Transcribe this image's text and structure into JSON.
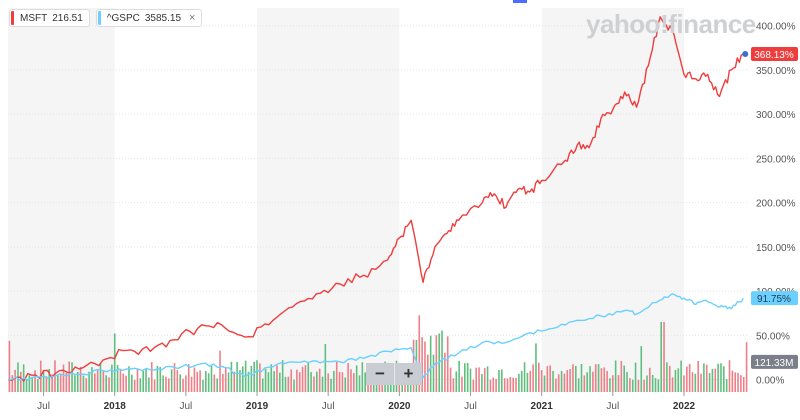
{
  "legend": {
    "items": [
      {
        "symbol": "MSFT",
        "value": "216.51",
        "color": "#ef3d3d"
      },
      {
        "symbol": "^GSPC",
        "value": "3585.15",
        "color": "#6cd0ff",
        "close": "×"
      }
    ]
  },
  "watermark": "yahoo!finance",
  "zoom": {
    "minus": "−",
    "plus": "+"
  },
  "badges": {
    "msft": "368.13%",
    "gspc": "91.75%",
    "volume": "121.33M"
  },
  "colors": {
    "msft": "#ef3d3d",
    "gspc": "#6cd0ff",
    "vol_up": "#5fbf7e",
    "vol_down": "#ec7f87",
    "shade": "#f5f5f6",
    "grid": "#e4e4e4",
    "axis_text": "#555555",
    "volume_badge": "#7b7f8a"
  },
  "chart_data": {
    "type": "line",
    "x_range": [
      "2017-04",
      "2022-06"
    ],
    "x_ticks": [
      {
        "label": "Jul",
        "date": "2017-07",
        "bold": false
      },
      {
        "label": "2018",
        "date": "2018-01",
        "bold": true
      },
      {
        "label": "Jul",
        "date": "2018-07",
        "bold": false
      },
      {
        "label": "2019",
        "date": "2019-01",
        "bold": true
      },
      {
        "label": "Jul",
        "date": "2019-07",
        "bold": false
      },
      {
        "label": "2020",
        "date": "2020-01",
        "bold": true
      },
      {
        "label": "Jul",
        "date": "2020-07",
        "bold": false
      },
      {
        "label": "2021",
        "date": "2021-01",
        "bold": true
      },
      {
        "label": "Jul",
        "date": "2021-07",
        "bold": false
      },
      {
        "label": "2022",
        "date": "2022-01",
        "bold": true
      }
    ],
    "y_ticks": [
      {
        "label": "400.00%",
        "value": 400
      },
      {
        "label": "350.00%",
        "value": 350
      },
      {
        "label": "300.00%",
        "value": 300
      },
      {
        "label": "250.00%",
        "value": 250
      },
      {
        "label": "200.00%",
        "value": 200
      },
      {
        "label": "150.00%",
        "value": 150
      },
      {
        "label": "100.00%",
        "value": 100
      },
      {
        "label": "50.00%",
        "value": 50
      },
      {
        "label": "0.00%",
        "value": 0
      }
    ],
    "ylim": [
      -5,
      420
    ],
    "series": [
      {
        "name": "MSFT",
        "color": "#ef3d3d",
        "points": [
          [
            "2017-04",
            0
          ],
          [
            "2017-06",
            5
          ],
          [
            "2017-08",
            7
          ],
          [
            "2017-10",
            12
          ],
          [
            "2017-12",
            22
          ],
          [
            "2018-02",
            33
          ],
          [
            "2018-04",
            32
          ],
          [
            "2018-06",
            45
          ],
          [
            "2018-08",
            58
          ],
          [
            "2018-10",
            62
          ],
          [
            "2018-12",
            48
          ],
          [
            "2019-02",
            62
          ],
          [
            "2019-04",
            82
          ],
          [
            "2019-06",
            97
          ],
          [
            "2019-08",
            108
          ],
          [
            "2019-10",
            118
          ],
          [
            "2019-12",
            135
          ],
          [
            "2020-01",
            160
          ],
          [
            "2020-02",
            180
          ],
          [
            "2020-03",
            110
          ],
          [
            "2020-04",
            150
          ],
          [
            "2020-05",
            165
          ],
          [
            "2020-06",
            180
          ],
          [
            "2020-08",
            200
          ],
          [
            "2020-09",
            210
          ],
          [
            "2020-10",
            195
          ],
          [
            "2020-11",
            215
          ],
          [
            "2020-12",
            212
          ],
          [
            "2021-01",
            225
          ],
          [
            "2021-03",
            248
          ],
          [
            "2021-04",
            265
          ],
          [
            "2021-05",
            262
          ],
          [
            "2021-06",
            295
          ],
          [
            "2021-07",
            305
          ],
          [
            "2021-08",
            325
          ],
          [
            "2021-09",
            308
          ],
          [
            "2021-10",
            355
          ],
          [
            "2021-11",
            410
          ],
          [
            "2021-12",
            395
          ],
          [
            "2022-01",
            345
          ],
          [
            "2022-02",
            340
          ],
          [
            "2022-03",
            345
          ],
          [
            "2022-04",
            320
          ],
          [
            "2022-05",
            350
          ],
          [
            "2022-06",
            368
          ]
        ]
      },
      {
        "name": "^GSPC",
        "color": "#6cd0ff",
        "points": [
          [
            "2017-04",
            0
          ],
          [
            "2017-06",
            2
          ],
          [
            "2017-08",
            4
          ],
          [
            "2017-10",
            6
          ],
          [
            "2017-12",
            10
          ],
          [
            "2018-02",
            12
          ],
          [
            "2018-04",
            11
          ],
          [
            "2018-06",
            14
          ],
          [
            "2018-08",
            17
          ],
          [
            "2018-10",
            15
          ],
          [
            "2018-12",
            3
          ],
          [
            "2019-02",
            14
          ],
          [
            "2019-04",
            20
          ],
          [
            "2019-06",
            21
          ],
          [
            "2019-08",
            20
          ],
          [
            "2019-10",
            24
          ],
          [
            "2019-12",
            32
          ],
          [
            "2020-02",
            36
          ],
          [
            "2020-03",
            2
          ],
          [
            "2020-04",
            18
          ],
          [
            "2020-06",
            30
          ],
          [
            "2020-08",
            42
          ],
          [
            "2020-10",
            42
          ],
          [
            "2020-12",
            53
          ],
          [
            "2021-02",
            58
          ],
          [
            "2021-04",
            67
          ],
          [
            "2021-06",
            72
          ],
          [
            "2021-08",
            78
          ],
          [
            "2021-09",
            74
          ],
          [
            "2021-11",
            90
          ],
          [
            "2021-12",
            97
          ],
          [
            "2022-01",
            92
          ],
          [
            "2022-02",
            85
          ],
          [
            "2022-03",
            88
          ],
          [
            "2022-04",
            82
          ],
          [
            "2022-05",
            80
          ],
          [
            "2022-06",
            92
          ]
        ]
      }
    ]
  }
}
